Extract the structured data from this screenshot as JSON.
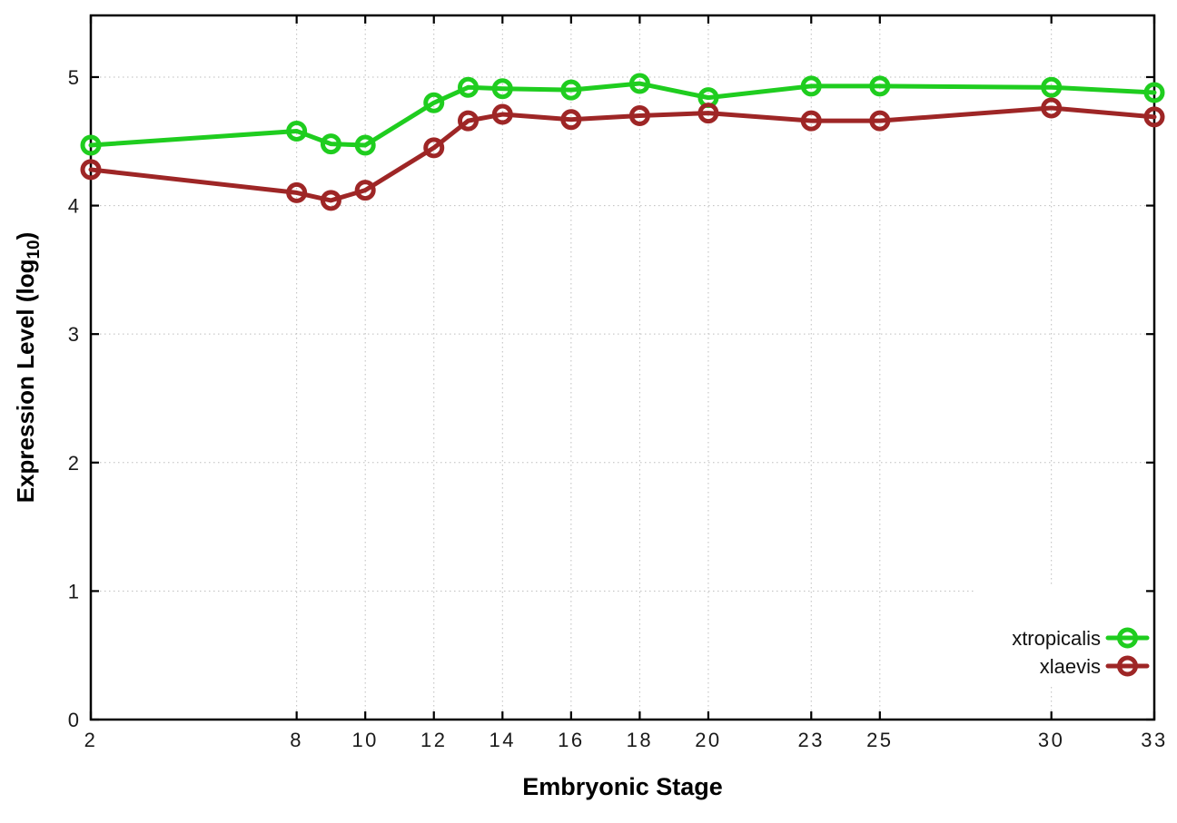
{
  "figure": {
    "background": "#ffffff",
    "axis_color": "#000000",
    "grid_color": "#bdbdbd",
    "tick_label_color": "#1a1a1a"
  },
  "chart_data": {
    "type": "line",
    "title": "",
    "xlabel": "Embryonic Stage",
    "ylabel_prefix": "Expression Level (log",
    "ylabel_sub": "10",
    "ylabel_suffix": ")",
    "x": [
      2,
      8,
      9,
      10,
      12,
      13,
      14,
      16,
      18,
      20,
      23,
      25,
      30,
      33
    ],
    "x_ticks": [
      2,
      8,
      10,
      12,
      14,
      16,
      18,
      20,
      23,
      25,
      30,
      33
    ],
    "y_ticks": [
      0,
      1,
      2,
      3,
      4,
      5
    ],
    "xlim": [
      2,
      33
    ],
    "ylim": [
      0,
      5.48
    ],
    "grid": true,
    "legend_position": "inside-bottom-right",
    "series": [
      {
        "name": "xtropicalis",
        "color": "#1fcd1f",
        "values": [
          4.47,
          4.58,
          4.48,
          4.47,
          4.8,
          4.92,
          4.91,
          4.9,
          4.95,
          4.84,
          4.93,
          4.93,
          4.92,
          4.88
        ]
      },
      {
        "name": "xlaevis",
        "color": "#9e2626",
        "values": [
          4.28,
          4.1,
          4.04,
          4.12,
          4.45,
          4.66,
          4.71,
          4.67,
          4.7,
          4.72,
          4.66,
          4.66,
          4.76,
          4.69
        ]
      }
    ]
  }
}
